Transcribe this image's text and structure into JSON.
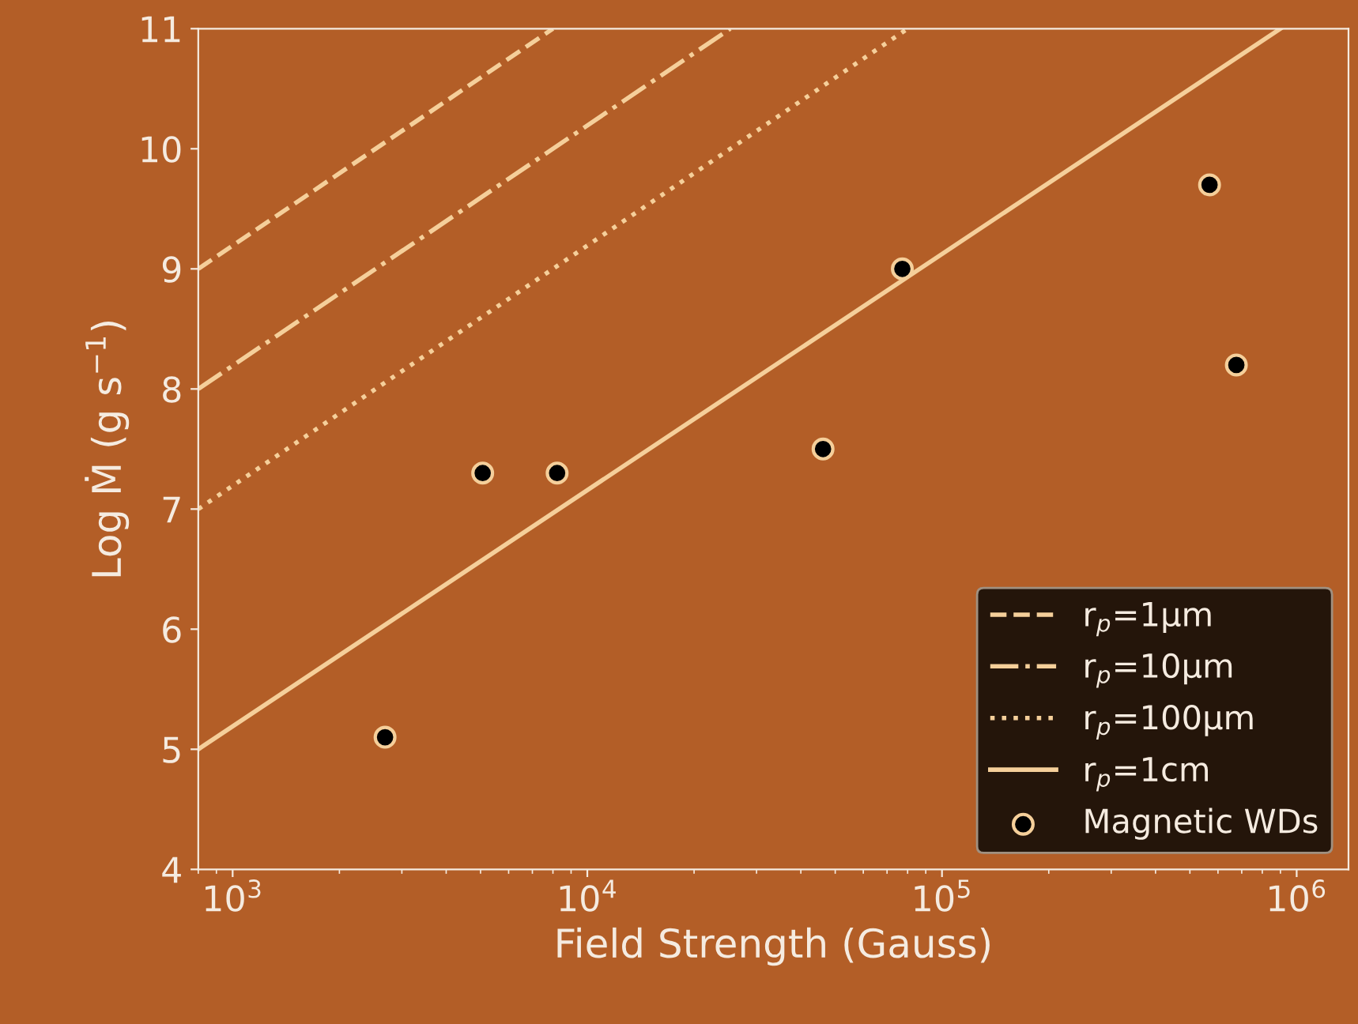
{
  "chart_data": {
    "type": "line",
    "xlabel": "Field Strength (Gauss)",
    "ylabel": "Log Ṁ (g s$^{−1}$)",
    "log": "x",
    "xlim": [
      800,
      1400000
    ],
    "xticks": [
      {
        "value": 1000,
        "label": "10$^{3}$"
      },
      {
        "value": 10000,
        "label": "10$^{4}$"
      },
      {
        "value": 100000,
        "label": "10$^{5}$"
      },
      {
        "value": 1000000,
        "label": "10$^{6}$"
      }
    ],
    "ylim": [
      4,
      11
    ],
    "yticks": [
      4,
      5,
      6,
      7,
      8,
      9,
      10,
      11
    ],
    "grid": false,
    "legend": "bottom right",
    "series": [
      {
        "name": "r$_{p}$=1μm",
        "line_style": "dashed",
        "color": "#f5cf9a",
        "x": [
          800,
          8000
        ],
        "values": [
          9,
          11
        ]
      },
      {
        "name": "r$_{p}$=10μm",
        "line_style": "dashdot",
        "color": "#f5cf9a",
        "x": [
          800,
          25300
        ],
        "values": [
          8,
          11
        ]
      },
      {
        "name": "r$_{p}$=100μm",
        "line_style": "dotted",
        "color": "#f5cf9a",
        "x": [
          800,
          80000
        ],
        "values": [
          7,
          11
        ]
      },
      {
        "name": "r$_{p}$=1cm",
        "line_style": "solid",
        "color": "#f5cf9a",
        "x": [
          800,
          900000
        ],
        "values": [
          5,
          11
        ]
      },
      {
        "name": "Magnetic WDs",
        "type": "scatter",
        "marker": "circle",
        "color": "#000000",
        "x": [
          2690,
          5070,
          8220,
          46200,
          77300,
          568000,
          676000
        ],
        "values": [
          5.1,
          7.3,
          7.3,
          7.5,
          9.0,
          9.7,
          8.2
        ]
      }
    ]
  }
}
